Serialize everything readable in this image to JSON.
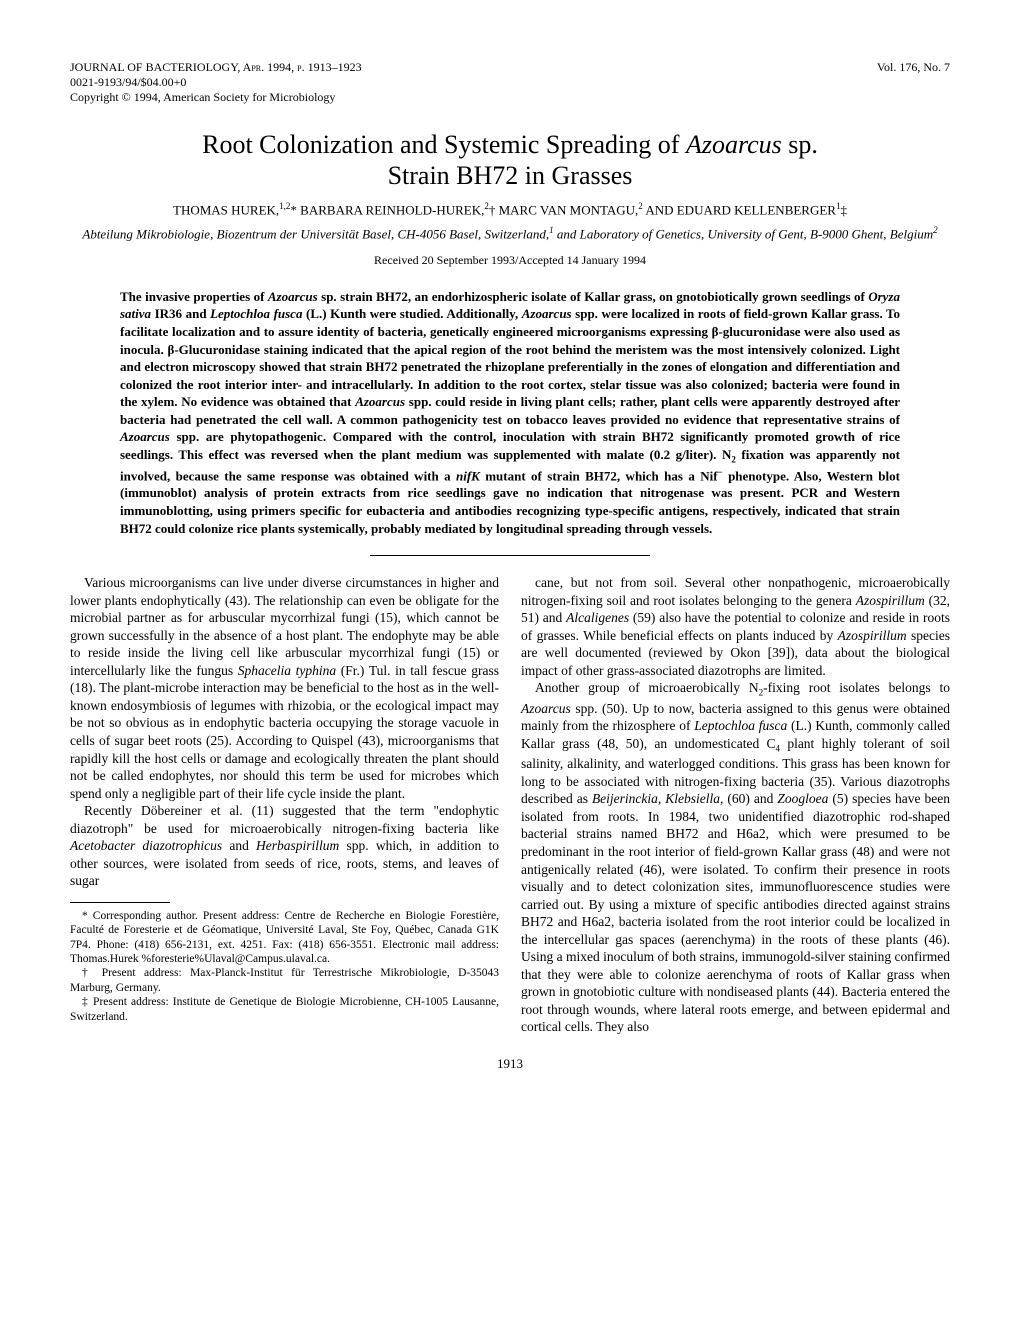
{
  "header": {
    "journal_line": "JOURNAL OF BACTERIOLOGY, Apr. 1994, p. 1913–1923",
    "issn_line": "0021-9193/94/$04.00+0",
    "copyright_line": "Copyright © 1994, American Society for Microbiology",
    "volume_issue": "Vol. 176, No. 7"
  },
  "title_line1": "Root Colonization and Systemic Spreading of ",
  "title_italic": "Azoarcus",
  "title_line1_end": " sp.",
  "title_line2": "Strain BH72 in Grasses",
  "authors_html": "THOMAS HUREK,<sup>1,2</sup>* BARBARA REINHOLD-HUREK,<sup>2</sup>† MARC VAN MONTAGU,<sup>2</sup> AND EDUARD KELLENBERGER<sup>1</sup>‡",
  "affiliations_html": "Abteilung Mikrobiologie, Biozentrum der Universität Basel, CH-4056 Basel, Switzerland,<sup>1</sup> and Laboratory of Genetics, University of Gent, B-9000 Ghent, Belgium<sup>2</sup>",
  "received": "Received 20 September 1993/Accepted 14 January 1994",
  "abstract_html": "The invasive properties of <i>Azoarcus</i> sp. strain BH72, an endorhizospheric isolate of Kallar grass, on gnotobiotically grown seedlings of <i>Oryza sativa</i> IR36 and <i>Leptochloa fusca</i> (L.) Kunth were studied. Additionally, <i>Azoarcus</i> spp. were localized in roots of field-grown Kallar grass. To facilitate localization and to assure identity of bacteria, genetically engineered microorganisms expressing β-glucuronidase were also used as inocula. β-Glucuronidase staining indicated that the apical region of the root behind the meristem was the most intensively colonized. Light and electron microscopy showed that strain BH72 penetrated the rhizoplane preferentially in the zones of elongation and differentiation and colonized the root interior inter- and intracellularly. In addition to the root cortex, stelar tissue was also colonized; bacteria were found in the xylem. No evidence was obtained that <i>Azoarcus</i> spp. could reside in living plant cells; rather, plant cells were apparently destroyed after bacteria had penetrated the cell wall. A common pathogenicity test on tobacco leaves provided no evidence that representative strains of <i>Azoarcus</i> spp. are phytopathogenic. Compared with the control, inoculation with strain BH72 significantly promoted growth of rice seedlings. This effect was reversed when the plant medium was supplemented with malate (0.2 g/liter). N<sub>2</sub> fixation was apparently not involved, because the same response was obtained with a <i>nifK</i> mutant of strain BH72, which has a Nif<sup>−</sup> phenotype. Also, Western blot (immunoblot) analysis of protein extracts from rice seedlings gave no indication that nitrogenase was present. PCR and Western immunoblotting, using primers specific for eubacteria and antibodies recognizing type-specific antigens, respectively, indicated that strain BH72 could colonize rice plants systemically, probably mediated by longitudinal spreading through vessels.",
  "body": {
    "p1_html": "Various microorganisms can live under diverse circumstances in higher and lower plants endophytically (43). The relationship can even be obligate for the microbial partner as for arbuscular mycorrhizal fungi (15), which cannot be grown successfully in the absence of a host plant. The endophyte may be able to reside inside the living cell like arbuscular mycorrhizal fungi (15) or intercellularly like the fungus <i>Sphacelia typhina</i> (Fr.) Tul. in tall fescue grass (18). The plant-microbe interaction may be beneficial to the host as in the well-known endosymbiosis of legumes with rhizobia, or the ecological impact may be not so obvious as in endophytic bacteria occupying the storage vacuole in cells of sugar beet roots (25). According to Quispel (43), microorganisms that rapidly kill the host cells or damage and ecologically threaten the plant should not be called endophytes, nor should this term be used for microbes which spend only a negligible part of their life cycle inside the plant.",
    "p2_html": "Recently Döbereiner et al. (11) suggested that the term \"endophytic diazotroph\" be used for microaerobically nitrogen-fixing bacteria like <i>Acetobacter diazotrophicus</i> and <i>Herbaspirillum</i> spp. which, in addition to other sources, were isolated from seeds of rice, roots, stems, and leaves of sugar",
    "p3_html": "cane, but not from soil. Several other nonpathogenic, microaerobically nitrogen-fixing soil and root isolates belonging to the genera <i>Azospirillum</i> (32, 51) and <i>Alcaligenes</i> (59) also have the potential to colonize and reside in roots of grasses. While beneficial effects on plants induced by <i>Azospirillum</i> species are well documented (reviewed by Okon [39]), data about the biological impact of other grass-associated diazotrophs are limited.",
    "p4_html": "Another group of microaerobically N<sub>2</sub>-fixing root isolates belongs to <i>Azoarcus</i> spp. (50). Up to now, bacteria assigned to this genus were obtained mainly from the rhizosphere of <i>Leptochloa fusca</i> (L.) Kunth, commonly called Kallar grass (48, 50), an undomesticated C<sub>4</sub> plant highly tolerant of soil salinity, alkalinity, and waterlogged conditions. This grass has been known for long to be associated with nitrogen-fixing bacteria (35). Various diazotrophs described as <i>Beijerinckia</i>, <i>Klebsiella</i>, (60) and <i>Zoogloea</i> (5) species have been isolated from roots. In 1984, two unidentified diazotrophic rod-shaped bacterial strains named BH72 and H6a2, which were presumed to be predominant in the root interior of field-grown Kallar grass (48) and were not antigenically related (46), were isolated. To confirm their presence in roots visually and to detect colonization sites, immunofluorescence studies were carried out. By using a mixture of specific antibodies directed against strains BH72 and H6a2, bacteria isolated from the root interior could be localized in the intercellular gas spaces (aerenchyma) in the roots of these plants (46). Using a mixed inoculum of both strains, immunogold-silver staining confirmed that they were able to colonize aerenchyma of roots of Kallar grass when grown in gnotobiotic culture with nondiseased plants (44). Bacteria entered the root through wounds, where lateral roots emerge, and between epidermal and cortical cells. They also"
  },
  "footnotes": {
    "fn1": "* Corresponding author. Present address: Centre de Recherche en Biologie Forestière, Faculté de Foresterie et de Géomatique, Université Laval, Ste Foy, Québec, Canada G1K 7P4. Phone: (418) 656-2131, ext. 4251. Fax: (418) 656-3551. Electronic mail address: Thomas.Hurek %foresterie%Ulaval@Campus.ulaval.ca.",
    "fn2": "† Present address: Max-Planck-Institut für Terrestrische Mikrobiologie, D-35043 Marburg, Germany.",
    "fn3": "‡ Present address: Institute de Genetique de Biologie Microbienne, CH-1005 Lausanne, Switzerland."
  },
  "page_number": "1913"
}
